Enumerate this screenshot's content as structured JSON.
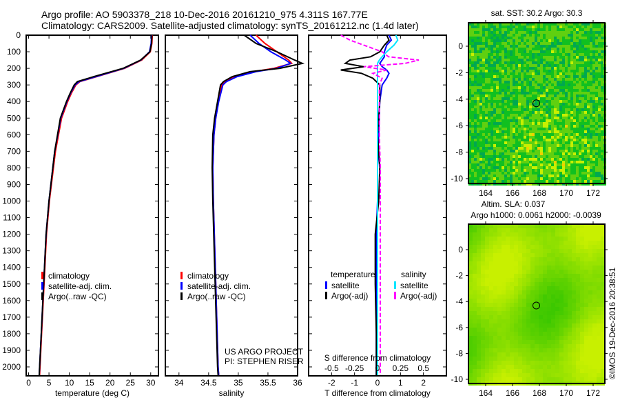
{
  "title_line1": "Argo profile: AO 5903378_218 10-Dec-2016 20161210_975 4.311S 167.77E",
  "title_line2": "Climatology: CARS2009. Satellite-adjusted climatology: synTS_20161212.nc (1.4d later)",
  "colors": {
    "climatology": "#ff0000",
    "satellite": "#0000ff",
    "argo": "#000000",
    "sal_satellite": "#00e5ff",
    "sal_argo": "#ff00ff"
  },
  "chart_data": [
    {
      "type": "line",
      "xlabel": "temperature (deg C)",
      "ylabel": "depth",
      "xlim": [
        -0.6,
        31.9
      ],
      "ylim": [
        2110,
        0
      ],
      "xticks": [
        "0",
        "5",
        "10",
        "15",
        "20",
        "25",
        "30"
      ],
      "xtick_values": [
        0,
        5,
        10,
        15,
        20,
        25,
        30
      ],
      "yticks": [
        "0",
        "100",
        "200",
        "300",
        "400",
        "500",
        "600",
        "700",
        "800",
        "900",
        "1000",
        "1100",
        "1200",
        "1300",
        "1400",
        "1500",
        "1600",
        "1700",
        "1800",
        "1900",
        "2000"
      ],
      "depth": [
        0,
        50,
        100,
        150,
        200,
        250,
        280,
        300,
        350,
        400,
        500,
        700,
        1000,
        1200,
        1500,
        1800,
        2000,
        2050
      ],
      "series": [
        {
          "name": "climatology",
          "values": [
            30.4,
            30.3,
            29.9,
            27.8,
            23.6,
            16.8,
            12.6,
            11.6,
            10.5,
            9.6,
            8.1,
            6.6,
            5.1,
            4.4,
            3.8,
            3.2,
            2.8,
            2.7
          ]
        },
        {
          "name": "satellite-adj. clim.",
          "values": [
            30.2,
            30.1,
            29.7,
            27.6,
            23.4,
            16.6,
            12.4,
            11.4,
            10.3,
            9.4,
            7.9,
            6.4,
            5.0,
            4.3,
            3.7,
            3.1,
            2.7,
            2.6
          ]
        },
        {
          "name": "Argo(..raw -QC)",
          "values": [
            30.3,
            30.2,
            29.8,
            27.5,
            23.2,
            16.0,
            12.0,
            11.2,
            10.2,
            9.3,
            7.8,
            6.4,
            5.0,
            4.3,
            3.7,
            3.1,
            2.7,
            2.6
          ]
        }
      ],
      "legend": [
        "climatology",
        "satellite-adj. clim.",
        "Argo(..raw -QC)"
      ]
    },
    {
      "type": "line",
      "xlabel": "salinity",
      "xlim": [
        33.77,
        36.0
      ],
      "xticks": [
        "34",
        "34.5",
        "35",
        "35.5",
        "36"
      ],
      "xtick_values": [
        34,
        34.5,
        35,
        35.5,
        36
      ],
      "depth": [
        0,
        50,
        100,
        150,
        170,
        200,
        220,
        250,
        280,
        300,
        400,
        500,
        600,
        800,
        1000,
        1500,
        2000,
        2050
      ],
      "series": [
        {
          "name": "climatology",
          "values": [
            35.3,
            35.45,
            35.65,
            35.85,
            35.9,
            35.6,
            35.25,
            34.95,
            34.78,
            34.72,
            34.66,
            34.62,
            34.59,
            34.57,
            34.58,
            34.62,
            34.66,
            34.67
          ]
        },
        {
          "name": "satellite-adj. clim.",
          "values": [
            35.2,
            35.35,
            35.55,
            35.8,
            35.88,
            35.65,
            35.3,
            34.98,
            34.8,
            34.74,
            34.67,
            34.62,
            34.59,
            34.57,
            34.58,
            34.62,
            34.66,
            34.67
          ]
        },
        {
          "name": "Argo(..raw -QC)",
          "values": [
            35.1,
            35.3,
            35.65,
            35.95,
            36.08,
            35.7,
            35.2,
            34.9,
            34.75,
            34.7,
            34.65,
            34.6,
            34.57,
            34.56,
            34.57,
            34.61,
            34.65,
            34.66
          ]
        }
      ],
      "legend": [
        "climatology",
        "satellite-adj. clim.",
        "Argo(..raw -QC)"
      ],
      "annotation": [
        "US ARGO PROJECT",
        "PI: STEPHEN RISER"
      ]
    },
    {
      "type": "line",
      "xlabel": "T difference from climatology",
      "xlabel2": "S difference from climatology",
      "xlim": [
        -3,
        3
      ],
      "xticks": [
        "-2",
        "-1",
        "0",
        "1",
        "2"
      ],
      "xtick_values": [
        -2,
        -1,
        0,
        1,
        2
      ],
      "xticks2": [
        "-0.5",
        "-0.25",
        "0",
        "0.25",
        "0.5"
      ],
      "xtick2_values": [
        -0.5,
        -0.25,
        0,
        0.25,
        0.5
      ],
      "depth": [
        0,
        30,
        60,
        100,
        130,
        150,
        170,
        190,
        210,
        230,
        260,
        300,
        400,
        600,
        800,
        1000,
        1200,
        1500,
        1800,
        2000,
        2050
      ],
      "series": [
        {
          "name": "temperature satellite",
          "values": [
            0.5,
            0.6,
            0.4,
            0.3,
            0.3,
            0.2,
            0.1,
            0.2,
            0.4,
            0.5,
            0.4,
            0.2,
            0.1,
            0.05,
            0,
            0,
            -0.05,
            -0.05,
            -0.05,
            -0.05,
            -0.05
          ]
        },
        {
          "name": "temperature Argo(-adj)",
          "values": [
            0.4,
            0.5,
            0.3,
            0.1,
            -0.3,
            -1.2,
            -1.4,
            -0.6,
            -1.6,
            -0.7,
            -0.2,
            0.1,
            0.1,
            0,
            0.1,
            0.05,
            -0.1,
            -0.1,
            -0.05,
            -0.05,
            -0.05
          ]
        },
        {
          "name": "salinity satellite",
          "values": [
            0.2,
            0.22,
            0.18,
            0.1,
            0.05,
            0.02,
            0,
            0,
            0,
            0,
            0,
            0,
            0,
            0,
            0,
            0,
            0,
            0,
            0,
            0,
            0
          ]
        },
        {
          "name": "salinity Argo(-adj)",
          "values": [
            -0.4,
            -0.3,
            -0.15,
            0.05,
            0.12,
            0.45,
            0.3,
            -0.15,
            0.1,
            -0.05,
            0.05,
            0.02,
            0.02,
            0.02,
            0.03,
            0.03,
            0.03,
            0.03,
            0.03,
            0.03,
            0.03
          ]
        }
      ],
      "legend_headers": [
        "temperature",
        "salinity"
      ],
      "legend": [
        "satellite",
        "Argo(-adj)",
        "satellite",
        "Argo(-adj)"
      ]
    },
    {
      "type": "heatmap",
      "title": "sat. SST: 30.2 Argo: 30.3",
      "xticks": [
        "164",
        "166",
        "168",
        "170",
        "172"
      ],
      "yticks": [
        "0",
        "-2",
        "-4",
        "-6",
        "-8",
        "-10"
      ],
      "marker": [
        167.77,
        -4.311
      ]
    },
    {
      "type": "heatmap",
      "title_line1": "Altim. SLA: 0.037",
      "title_line2": "Argo h1000: 0.0061 h2000: -0.0039",
      "xticks": [
        "164",
        "166",
        "168",
        "170",
        "172"
      ],
      "yticks": [
        "0",
        "-2",
        "-4",
        "-6",
        "-8",
        "-10"
      ],
      "marker": [
        167.77,
        -4.311
      ]
    }
  ],
  "credit": "©IMOS 19-Dec-2016 20:38:51"
}
